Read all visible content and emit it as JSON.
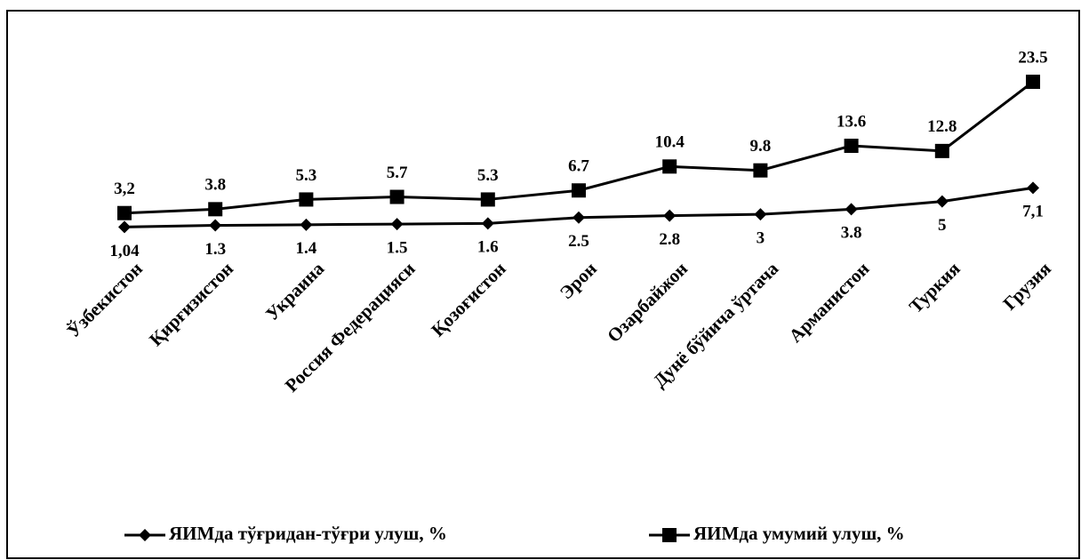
{
  "chart_data": {
    "type": "line",
    "categories": [
      "Ўзбекистон",
      "Қирғизистон",
      "Украина",
      "Россия Федерацияси",
      "Қозоғистон",
      "Эрон",
      "Озарбайжон",
      "Дунё бўйича ўртача",
      "Арманистон",
      "Туркия",
      "Грузия"
    ],
    "series": [
      {
        "name": "ЯИМда тўғридан-тўғри улуш, %",
        "color": "#000000",
        "marker": "diamond",
        "values": [
          1.04,
          1.3,
          1.4,
          1.5,
          1.6,
          2.5,
          2.8,
          3,
          3.8,
          5,
          7.1
        ],
        "value_labels": [
          "1,04",
          "1.3",
          "1.4",
          "1.5",
          "1.6",
          "2.5",
          "2.8",
          "3",
          "3.8",
          "5",
          "7,1"
        ]
      },
      {
        "name": "ЯИМда умумий улуш, %",
        "color": "#000000",
        "marker": "square",
        "values": [
          3.2,
          3.8,
          5.3,
          5.7,
          5.3,
          6.7,
          10.4,
          9.8,
          13.6,
          12.8,
          23.5
        ],
        "value_labels": [
          "3,2",
          "3.8",
          "5.3",
          "5.7",
          "5.3",
          "6.7",
          "10.4",
          "9.8",
          "13.6",
          "12.8",
          "23.5"
        ]
      }
    ]
  }
}
